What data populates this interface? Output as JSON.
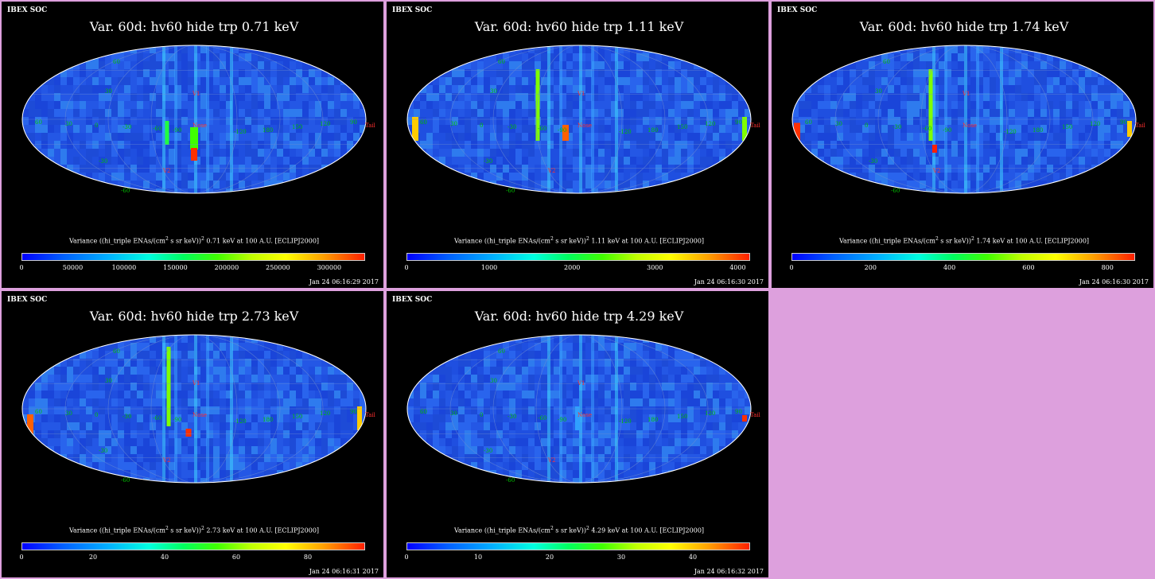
{
  "panels": [
    {
      "org": "IBEX SOC",
      "title": "Var. 60d: hv60 hide trp 0.71 keV",
      "label_prefix": "Variance ((hi_triple ENAs/(cm",
      "label_mid": " s sr keV))",
      "label_suffix": " 0.71 keV at 100 A.U. [ECLIPJ2000]",
      "exp": "2",
      "timestamp": "Jan 24 06:16:29 2017",
      "range": [
        0,
        335000
      ],
      "ticks": [
        "0",
        "50000",
        "100000",
        "150000",
        "200000",
        "250000",
        "300000"
      ],
      "tick_values": [
        0,
        50000,
        100000,
        150000,
        200000,
        250000,
        300000
      ]
    },
    {
      "org": "IBEX SOC",
      "title": "Var. 60d: hv60 hide trp 1.11 keV",
      "label_prefix": "Variance ((hi_triple ENAs/(cm",
      "label_mid": " s sr keV))",
      "label_suffix": " 1.11 keV at 100 A.U. [ECLIPJ2000]",
      "exp": "2",
      "timestamp": "Jan 24 06:16:30 2017",
      "range": [
        0,
        4150
      ],
      "ticks": [
        "0",
        "1000",
        "2000",
        "3000",
        "4000"
      ],
      "tick_values": [
        0,
        1000,
        2000,
        3000,
        4000
      ]
    },
    {
      "org": "IBEX SOC",
      "title": "Var. 60d: hv60 hide trp 1.74 keV",
      "label_prefix": "Variance ((hi_triple ENAs/(cm",
      "label_mid": " s sr keV))",
      "label_suffix": " 1.74 keV at 100 A.U. [ECLIPJ2000]",
      "exp": "2",
      "timestamp": "Jan 24 06:16:30 2017",
      "range": [
        0,
        870
      ],
      "ticks": [
        "0",
        "200",
        "400",
        "600",
        "800"
      ],
      "tick_values": [
        0,
        200,
        400,
        600,
        800
      ]
    },
    {
      "org": "IBEX SOC",
      "title": "Var. 60d: hv60 hide trp 2.73 keV",
      "label_prefix": "Variance ((hi_triple ENAs/(cm",
      "label_mid": " s sr keV))",
      "label_suffix": " 2.73 keV at 100 A.U. [ECLIPJ2000]",
      "exp": "2",
      "timestamp": "Jan 24 06:16:31 2017",
      "range": [
        0,
        96
      ],
      "ticks": [
        "0",
        "20",
        "40",
        "60",
        "80"
      ],
      "tick_values": [
        0,
        20,
        40,
        60,
        80
      ]
    },
    {
      "org": "IBEX SOC",
      "title": "Var. 60d: hv60 hide trp 4.29 keV",
      "label_prefix": "Variance ((hi_triple ENAs/(cm",
      "label_mid": " s sr keV))",
      "label_suffix": " 4.29 keV at 100 A.U. [ECLIPJ2000]",
      "exp": "2",
      "timestamp": "Jan 24 06:16:32 2017",
      "range": [
        0,
        48
      ],
      "ticks": [
        "0",
        "10",
        "20",
        "30",
        "40"
      ],
      "tick_values": [
        0,
        10,
        20,
        30,
        40
      ]
    }
  ],
  "map_labels": {
    "nose": "Nose",
    "tail": "Tail",
    "v1": "V1",
    "v2": "V2",
    "lat_60": "60",
    "lat_30": "30",
    "lat_m30": "-30",
    "lat_m60": "-60",
    "lon_60": "60",
    "lon_30": "30",
    "lon_0": "0",
    "lon_m30": "-30",
    "lon_m60": "-60",
    "lon_m90": "-90",
    "lon_m120": "-120",
    "lon_180": "180",
    "lon_150": "150",
    "lon_120": "120",
    "lon_90": "90"
  },
  "colors": {
    "background": "#dda0dd",
    "panel": "#000000",
    "map_base": "#1f4fe0",
    "grid": "#6f8fd0",
    "label_green": "#00c000",
    "label_red": "#ff3030"
  }
}
